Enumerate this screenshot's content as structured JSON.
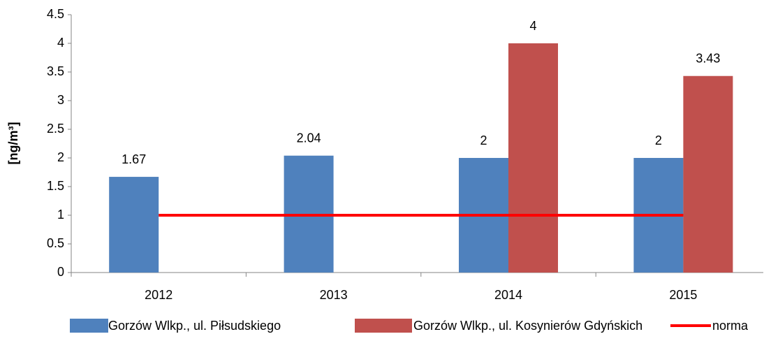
{
  "chart_data": {
    "type": "bar",
    "y_label": "[ng/m³]",
    "categories": [
      "2012",
      "2013",
      "2014",
      "2015"
    ],
    "series": [
      {
        "name": "Gorzów Wlkp., ul. Piłsudskiego",
        "color": "#4f81bd",
        "values": [
          1.67,
          2.04,
          2,
          2
        ]
      },
      {
        "name": "Gorzów Wlkp., ul. Kosynierów Gdyńskich",
        "color": "#c0504d",
        "values": [
          null,
          null,
          4,
          3.43
        ]
      },
      {
        "name": "norma",
        "type": "line",
        "color": "#ff0000",
        "values": [
          1,
          1,
          1,
          1
        ]
      }
    ],
    "ylim": [
      0,
      4.5
    ],
    "yticks": [
      0,
      0.5,
      1,
      1.5,
      2,
      2.5,
      3,
      3.5,
      4,
      4.5
    ],
    "grid": false,
    "legend": "bottom"
  }
}
